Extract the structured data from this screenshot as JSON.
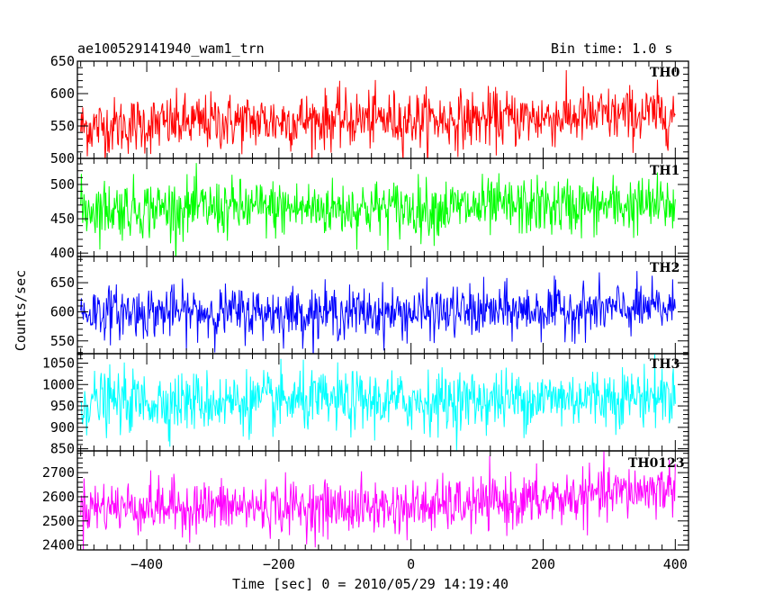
{
  "chart_data": {
    "type": "line",
    "title_left": "ae100529141940_wam1_trn",
    "title_right": "Bin time: 1.0 s",
    "xlabel": "Time [sec] 0 = 2010/05/29 14:19:40",
    "ylabel": "Counts/sec",
    "xlim": [
      -505,
      420
    ],
    "x_ticks": [
      -400,
      -200,
      0,
      200,
      400
    ],
    "x_range": [
      -500,
      400
    ],
    "bin_time_s": 1.0,
    "grid": false,
    "panels": [
      {
        "name": "TH0",
        "color": "#ff0000",
        "ylim": [
          500,
          650
        ],
        "y_ticks": [
          500,
          550,
          600,
          650
        ],
        "mean_start": 548,
        "mean_end": 568,
        "spread": 22,
        "trend": [
          [
            -500,
            548
          ],
          [
            -300,
            556
          ],
          [
            -100,
            560
          ],
          [
            100,
            560
          ],
          [
            300,
            566
          ],
          [
            400,
            568
          ]
        ]
      },
      {
        "name": "TH1",
        "color": "#00ff00",
        "ylim": [
          395,
          538
        ],
        "y_ticks": [
          400,
          450,
          500
        ],
        "mean_start": 465,
        "mean_end": 470,
        "spread": 21,
        "trend": [
          [
            -500,
            465
          ],
          [
            0,
            465
          ],
          [
            400,
            470
          ]
        ]
      },
      {
        "name": "TH2",
        "color": "#0000ff",
        "ylim": [
          528,
          695
        ],
        "y_ticks": [
          550,
          600,
          650
        ],
        "mean_start": 600,
        "mean_end": 606,
        "spread": 22,
        "trend": [
          [
            -500,
            600
          ],
          [
            0,
            598
          ],
          [
            400,
            606
          ]
        ]
      },
      {
        "name": "TH3",
        "color": "#00ffff",
        "ylim": [
          845,
          1072
        ],
        "y_ticks": [
          850,
          900,
          950,
          1000,
          1050
        ],
        "mean_start": 960,
        "mean_end": 975,
        "spread": 35,
        "trend": [
          [
            -500,
            960
          ],
          [
            0,
            960
          ],
          [
            400,
            975
          ]
        ]
      },
      {
        "name": "TH0123",
        "color": "#ff00ff",
        "ylim": [
          2380,
          2790
        ],
        "y_ticks": [
          2400,
          2500,
          2600,
          2700
        ],
        "mean_start": 2560,
        "mean_end": 2640,
        "spread": 55,
        "trend": [
          [
            -500,
            2560
          ],
          [
            0,
            2555
          ],
          [
            200,
            2585
          ],
          [
            400,
            2640
          ]
        ]
      }
    ]
  }
}
